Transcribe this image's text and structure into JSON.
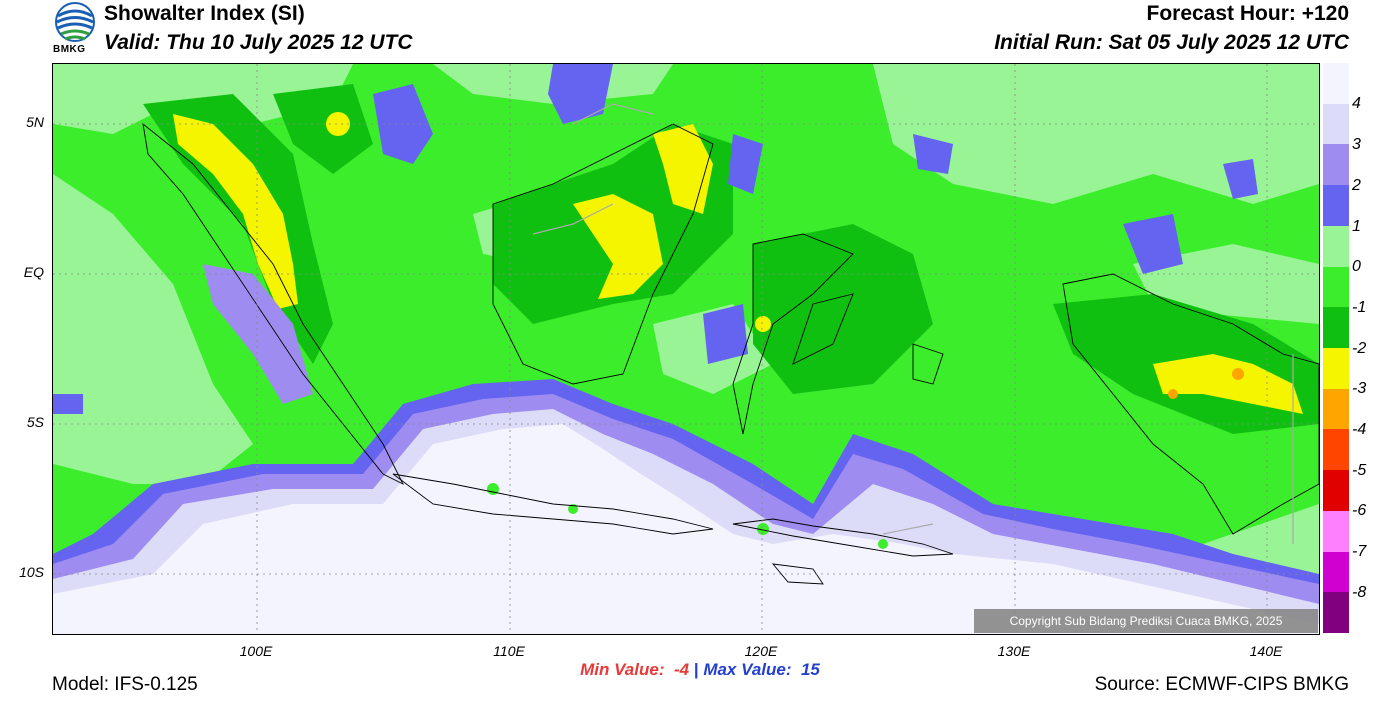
{
  "header": {
    "title": "Showalter Index (SI)",
    "valid": "Valid: Thu 10 July 2025 12 UTC",
    "forecast_hour": "Forecast Hour: +120",
    "initial_run": "Initial Run: Sat 05 July 2025 12 UTC"
  },
  "logo": {
    "text": "BMKG"
  },
  "axes": {
    "y_ticks": [
      "5N",
      "EQ",
      "5S",
      "10S"
    ],
    "x_ticks": [
      "100E",
      "110E",
      "120E",
      "130E",
      "140E"
    ]
  },
  "colorbar": {
    "labels": [
      "4",
      "3",
      "2",
      "1",
      "0",
      "-1",
      "-2",
      "-3",
      "-4",
      "-5",
      "-6",
      "-7",
      "-8"
    ],
    "colors": [
      "#f4f4ff",
      "#dcdcf8",
      "#9f8cf0",
      "#6464f0",
      "#98f494",
      "#3ced2c",
      "#10c010",
      "#f5f500",
      "#ffa500",
      "#ff4500",
      "#e00000",
      "#ff80ff",
      "#d000d0",
      "#800080"
    ]
  },
  "copyright": "Copyright Sub Bidang Prediksi Cuaca BMKG, 2025",
  "stats": {
    "min_label": "Min Value:",
    "min_value": "-4",
    "separator": "|",
    "max_label": "Max Value:",
    "max_value": "15"
  },
  "footer": {
    "model": "Model: IFS-0.125",
    "source": "Source: ECMWF-CIPS BMKG"
  }
}
